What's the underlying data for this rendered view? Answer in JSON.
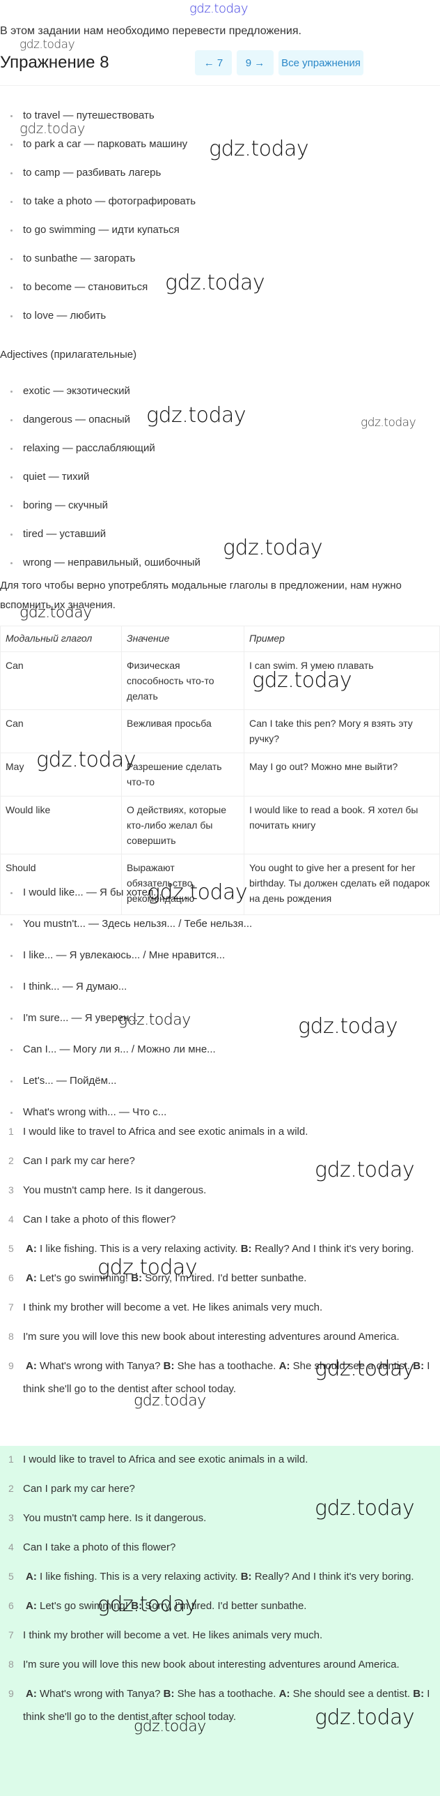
{
  "watermark": "gdz.today",
  "intro": "В этом задании нам необходимо перевести предложения.",
  "title": "Упражнение 8",
  "nav": {
    "prev": "← 7",
    "next": "9 →",
    "all": "Все упражнения"
  },
  "verbs": [
    "to travel — путешествовать",
    "to park a car — парковать машину",
    "to camp — разбивать лагерь",
    "to take a photo — фотографировать",
    "to go swimming — идти купаться",
    "to sunbathe — загорать",
    "to become — становиться",
    "to love — любить"
  ],
  "adjectives_heading": "Adjectives (прилагательные)",
  "adjectives": [
    "exotic — экзотический",
    "dangerous — опасный",
    "relaxing — расслабляющий",
    "quiet — тихий",
    "boring — скучный",
    "tired — уставший",
    "wrong — неправильный, ошибочный"
  ],
  "modal_intro": "Для того чтобы верно употреблять модальные глаголы в предложении, нам нужно вспомнить их значения.",
  "table": {
    "headers": [
      "Модальный глагол",
      "Значение",
      "Пример"
    ],
    "rows": [
      [
        "Can",
        "Физическая способность что-то делать",
        "I can swim. Я умею плавать"
      ],
      [
        "Can",
        "Вежливая просьба",
        "Can I take this pen? Могу я взять эту ручку?"
      ],
      [
        "May",
        "Разрешение сделать что-то",
        "May I go out? Можно мне выйти?"
      ],
      [
        "Would like",
        "О действиях, которые кто-либо желал бы совершить",
        "I would like to read a book. Я хотел бы почитать книгу"
      ],
      [
        "Should",
        "Выражают обязательство, рекомендацию",
        "You ought to give her a present for her birthday. Ты должен сделать ей подарок на день рождения"
      ]
    ]
  },
  "phrases": [
    "I would like... — Я бы хотел...",
    "You mustn't... — Здесь нельзя... / Тебе нельзя...",
    "I like... — Я увлекаюсь... / Мне нравится...",
    "I think... — Я думаю...",
    "I'm sure... — Я уверен...",
    "Can I... — Могу ли я... / Можно ли мне...",
    "Let's... — Пойдём...",
    "What's wrong with... — Что с..."
  ],
  "sentences": [
    {
      "n": "1",
      "parts": [
        [
          "",
          "I would like to travel to Africa and see exotic animals in a wild."
        ]
      ]
    },
    {
      "n": "2",
      "parts": [
        [
          "",
          "Can I park my car here?"
        ]
      ]
    },
    {
      "n": "3",
      "parts": [
        [
          "",
          "You mustn't camp here. Is it dangerous."
        ]
      ]
    },
    {
      "n": "4",
      "parts": [
        [
          "",
          "Can I take a photo of this flower?"
        ]
      ]
    },
    {
      "n": "5",
      "parts": [
        [
          "A:",
          " I like fishing. This is a very relaxing activity. "
        ],
        [
          "B:",
          " Really? And I think it's very boring."
        ]
      ]
    },
    {
      "n": "6",
      "parts": [
        [
          "A:",
          " Let's go swimming! "
        ],
        [
          "B:",
          " Sorry, I'm tired. I'd better sunbathe."
        ]
      ]
    },
    {
      "n": "7",
      "parts": [
        [
          "",
          "I think my brother will become a vet. He likes animals very much."
        ]
      ]
    },
    {
      "n": "8",
      "parts": [
        [
          "",
          "I'm sure you will love this new book about interesting adventures around America."
        ]
      ]
    },
    {
      "n": "9",
      "parts": [
        [
          "A:",
          " What's wrong with Tanya? "
        ],
        [
          "B:",
          " She has a toothache. "
        ],
        [
          "A:",
          " She should see a dentist. "
        ],
        [
          "B:",
          " I think she'll go to the dentist after school today."
        ]
      ]
    }
  ],
  "colors": {
    "nav_bg": "#e8f8fd",
    "nav_text": "#2a88c8",
    "answer_bg": "#dcfbe9"
  }
}
